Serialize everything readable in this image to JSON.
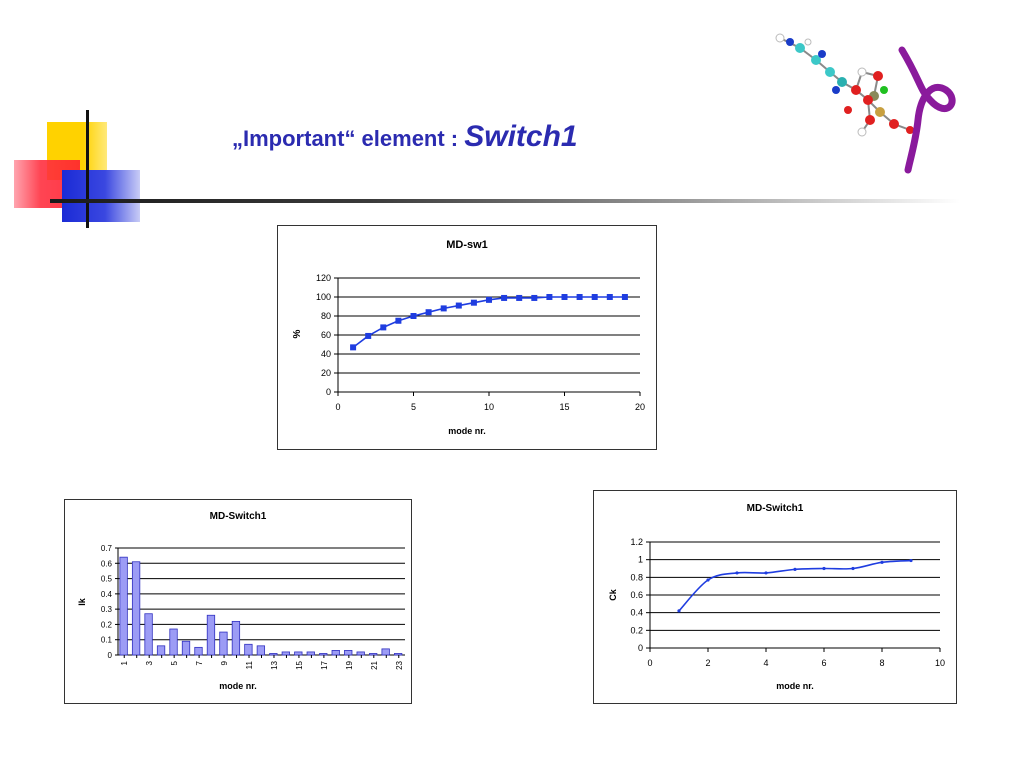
{
  "slide": {
    "title_part1": "„Important“ element : ",
    "title_emphasis": "Switch1",
    "colors": {
      "title": "#2b2bb0",
      "series": "#1f3de0",
      "bar_fill": "#9c9cf5",
      "bar_stroke": "#3030c0",
      "ribbon": "#8a1a9c"
    },
    "images": [
      "molecule-structure-image"
    ]
  },
  "chart_data": [
    {
      "id": "md-sw1",
      "type": "line",
      "title": "MD-sw1",
      "xlabel": "mode nr.",
      "ylabel": "%",
      "xlim": [
        0,
        20
      ],
      "ylim": [
        0,
        120
      ],
      "xticks": [
        0,
        5,
        10,
        15,
        20
      ],
      "yticks": [
        0,
        20,
        40,
        60,
        80,
        100,
        120
      ],
      "grid": "horizontal",
      "marker": "square",
      "x": [
        1,
        2,
        3,
        4,
        5,
        6,
        7,
        8,
        9,
        10,
        11,
        12,
        13,
        14,
        15,
        16,
        17,
        18,
        19
      ],
      "y": [
        47,
        59,
        68,
        75,
        80,
        84,
        88,
        91,
        94,
        97,
        99,
        99,
        99,
        100,
        100,
        100,
        100,
        100,
        100
      ]
    },
    {
      "id": "md-switch1-bar",
      "type": "bar",
      "title": "MD-Switch1",
      "xlabel": "mode nr.",
      "ylabel": "Ik",
      "ylim": [
        0,
        0.7
      ],
      "yticks": [
        "0",
        "0.1",
        "0.2",
        "0.3",
        "0.4",
        "0.5",
        "0.6",
        "0.7"
      ],
      "grid": "horizontal",
      "categories": [
        1,
        2,
        3,
        4,
        5,
        6,
        7,
        8,
        9,
        10,
        11,
        12,
        13,
        14,
        15,
        16,
        17,
        18,
        19,
        20,
        21,
        22,
        23
      ],
      "tick_labels": [
        "1",
        "3",
        "5",
        "7",
        "9",
        "11",
        "13",
        "15",
        "17",
        "19",
        "21",
        "23"
      ],
      "values": [
        0.64,
        0.61,
        0.27,
        0.06,
        0.17,
        0.09,
        0.05,
        0.26,
        0.15,
        0.22,
        0.07,
        0.06,
        0.01,
        0.02,
        0.02,
        0.02,
        0.01,
        0.03,
        0.03,
        0.02,
        0.01,
        0.04,
        0.01
      ]
    },
    {
      "id": "md-switch1-line",
      "type": "line",
      "title": "MD-Switch1",
      "xlabel": "mode nr.",
      "ylabel": "Ck",
      "xlim": [
        0,
        10
      ],
      "ylim": [
        0,
        1.2
      ],
      "xticks": [
        0,
        2,
        4,
        6,
        8,
        10
      ],
      "yticks": [
        "0",
        "0.2",
        "0.4",
        "0.6",
        "0.8",
        "1",
        "1.2"
      ],
      "grid": "horizontal",
      "marker": "small",
      "smooth": true,
      "x": [
        1,
        2,
        3,
        4,
        5,
        6,
        7,
        8,
        9
      ],
      "y": [
        0.42,
        0.77,
        0.85,
        0.85,
        0.89,
        0.9,
        0.9,
        0.97,
        0.99
      ]
    }
  ]
}
